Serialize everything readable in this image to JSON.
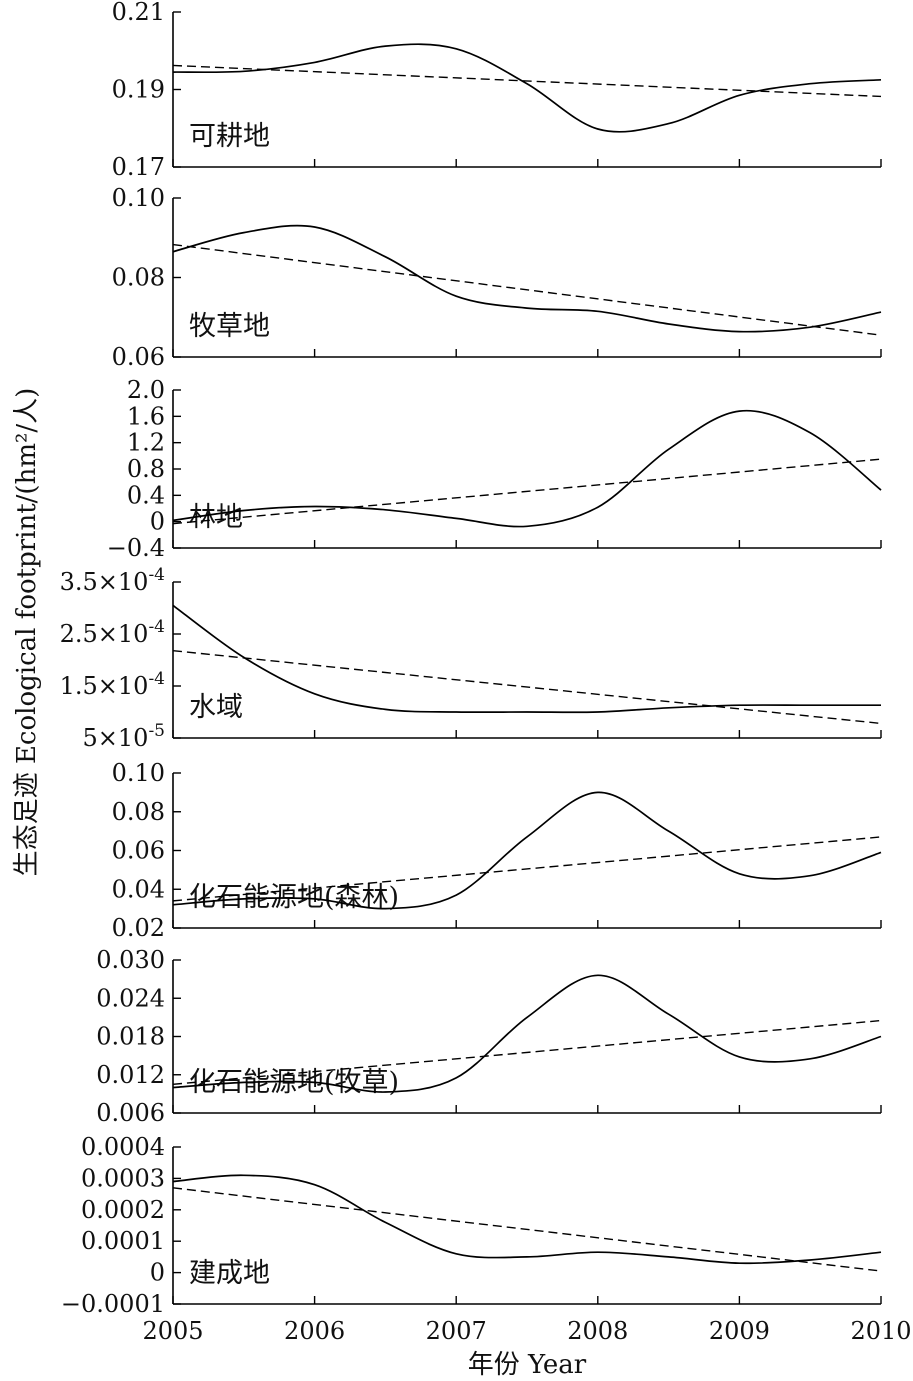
{
  "chart_data": {
    "type": "line",
    "xlabel": "年份 Year",
    "ylabel": "生态足迹 Ecological footprint/(hm²/人)",
    "x_ticks": [
      "2005",
      "2006",
      "2007",
      "2008",
      "2009",
      "2010"
    ],
    "xlim": [
      2005,
      2010
    ],
    "grid": false,
    "legend": "none",
    "line_styles": {
      "solid": "#000000",
      "dashed": "#000000"
    },
    "panels": [
      {
        "id": "cropland",
        "label": "可耕地",
        "ylim": [
          0.17,
          0.21
        ],
        "y_ticks": [
          0.17,
          0.19,
          0.21
        ],
        "y_tick_labels": [
          "0.17",
          "0.19",
          "0.21"
        ],
        "solid": [
          [
            2005,
            0.1945
          ],
          [
            2005.5,
            0.1947
          ],
          [
            2006,
            0.197
          ],
          [
            2006.5,
            0.2012
          ],
          [
            2007,
            0.2005
          ],
          [
            2007.5,
            0.1915
          ],
          [
            2008,
            0.1798
          ],
          [
            2008.5,
            0.1812
          ],
          [
            2009,
            0.1885
          ],
          [
            2009.5,
            0.1915
          ],
          [
            2010,
            0.1925
          ]
        ],
        "dashed": [
          [
            2005,
            0.1962
          ],
          [
            2010,
            0.1882
          ]
        ]
      },
      {
        "id": "pasture",
        "label": "牧草地",
        "ylim": [
          0.06,
          0.1
        ],
        "y_ticks": [
          0.06,
          0.08,
          0.1
        ],
        "y_tick_labels": [
          "0.06",
          "0.08",
          "0.10"
        ],
        "solid": [
          [
            2005,
            0.0865
          ],
          [
            2005.5,
            0.0913
          ],
          [
            2006,
            0.0927
          ],
          [
            2006.5,
            0.0852
          ],
          [
            2007,
            0.0753
          ],
          [
            2007.5,
            0.0723
          ],
          [
            2008,
            0.0715
          ],
          [
            2008.5,
            0.0683
          ],
          [
            2009,
            0.0664
          ],
          [
            2009.5,
            0.0675
          ],
          [
            2010,
            0.0713
          ]
        ],
        "dashed": [
          [
            2005,
            0.0883
          ],
          [
            2010,
            0.0655
          ]
        ]
      },
      {
        "id": "forest",
        "label": "林地",
        "ylim": [
          -0.4,
          2.0
        ],
        "y_ticks": [
          -0.4,
          0,
          0.4,
          0.8,
          1.2,
          1.6,
          2.0
        ],
        "y_tick_labels": [
          "−0.4",
          "0",
          "0.4",
          "0.8",
          "1.2",
          "1.6",
          "2.0"
        ],
        "solid": [
          [
            2005,
            0.02
          ],
          [
            2005.5,
            0.17
          ],
          [
            2006,
            0.23
          ],
          [
            2006.5,
            0.18
          ],
          [
            2007,
            0.05
          ],
          [
            2007.5,
            -0.07
          ],
          [
            2008,
            0.22
          ],
          [
            2008.5,
            1.1
          ],
          [
            2009,
            1.68
          ],
          [
            2009.5,
            1.35
          ],
          [
            2010,
            0.48
          ]
        ],
        "dashed": [
          [
            2005,
            -0.03
          ],
          [
            2010,
            0.95
          ]
        ]
      },
      {
        "id": "water",
        "label": "水域",
        "ylim": [
          5e-05,
          0.00035
        ],
        "y_ticks": [
          5e-05,
          0.00015,
          0.00025,
          0.00035
        ],
        "y_tick_labels": [
          [
            "5",
            "-5"
          ],
          [
            "1.5",
            "-4"
          ],
          [
            "2.5",
            "-4"
          ],
          [
            "3.5",
            "-4"
          ]
        ],
        "solid": [
          [
            2005,
            0.000305
          ],
          [
            2005.5,
            0.000205
          ],
          [
            2006,
            0.000135
          ],
          [
            2006.5,
            0.000105
          ],
          [
            2007,
            0.0001
          ],
          [
            2007.5,
            0.0001
          ],
          [
            2008,
            0.0001
          ],
          [
            2008.5,
            0.000108
          ],
          [
            2009,
            0.000113
          ],
          [
            2009.5,
            0.000113
          ],
          [
            2010,
            0.000113
          ]
        ],
        "dashed": [
          [
            2005,
            0.000218
          ],
          [
            2010,
            7.8e-05
          ]
        ]
      },
      {
        "id": "fossil-forest",
        "label": "化石能源地(森林)",
        "ylim": [
          0.02,
          0.1
        ],
        "y_ticks": [
          0.02,
          0.04,
          0.06,
          0.08,
          0.1
        ],
        "y_tick_labels": [
          "0.02",
          "0.04",
          "0.06",
          "0.08",
          "0.10"
        ],
        "solid": [
          [
            2005,
            0.032
          ],
          [
            2005.5,
            0.035
          ],
          [
            2006,
            0.035
          ],
          [
            2006.5,
            0.03
          ],
          [
            2007,
            0.037
          ],
          [
            2007.5,
            0.067
          ],
          [
            2008,
            0.09
          ],
          [
            2008.5,
            0.07
          ],
          [
            2009,
            0.048
          ],
          [
            2009.5,
            0.047
          ],
          [
            2010,
            0.059
          ]
        ],
        "dashed": [
          [
            2005,
            0.034
          ],
          [
            2010,
            0.067
          ]
        ]
      },
      {
        "id": "fossil-pasture",
        "label": "化石能源地(牧草)",
        "ylim": [
          0.006,
          0.03
        ],
        "y_ticks": [
          0.006,
          0.012,
          0.018,
          0.024,
          0.03
        ],
        "y_tick_labels": [
          "0.006",
          "0.012",
          "0.018",
          "0.024",
          "0.030"
        ],
        "solid": [
          [
            2005,
            0.01
          ],
          [
            2005.5,
            0.0108
          ],
          [
            2006,
            0.0108
          ],
          [
            2006.5,
            0.0093
          ],
          [
            2007,
            0.0115
          ],
          [
            2007.5,
            0.021
          ],
          [
            2008,
            0.0276
          ],
          [
            2008.5,
            0.0215
          ],
          [
            2009,
            0.0148
          ],
          [
            2009.5,
            0.0145
          ],
          [
            2010,
            0.018
          ]
        ],
        "dashed": [
          [
            2005,
            0.0105
          ],
          [
            2010,
            0.0205
          ]
        ]
      },
      {
        "id": "built-up",
        "label": "建成地",
        "ylim": [
          -0.0001,
          0.0004
        ],
        "y_ticks": [
          -0.0001,
          0,
          0.0001,
          0.0002,
          0.0003,
          0.0004
        ],
        "y_tick_labels": [
          "−0.0001",
          "0",
          "0.0001",
          "0.0002",
          "0.0003",
          "0.0004"
        ],
        "solid": [
          [
            2005,
            0.00029
          ],
          [
            2005.5,
            0.00031
          ],
          [
            2006,
            0.00028
          ],
          [
            2006.5,
            0.00016
          ],
          [
            2007,
            6e-05
          ],
          [
            2007.5,
            5e-05
          ],
          [
            2008,
            6.5e-05
          ],
          [
            2008.5,
            5e-05
          ],
          [
            2009,
            3e-05
          ],
          [
            2009.5,
            4e-05
          ],
          [
            2010,
            6.5e-05
          ]
        ],
        "dashed": [
          [
            2005,
            0.00027
          ],
          [
            2010,
            5e-06
          ]
        ]
      }
    ]
  }
}
